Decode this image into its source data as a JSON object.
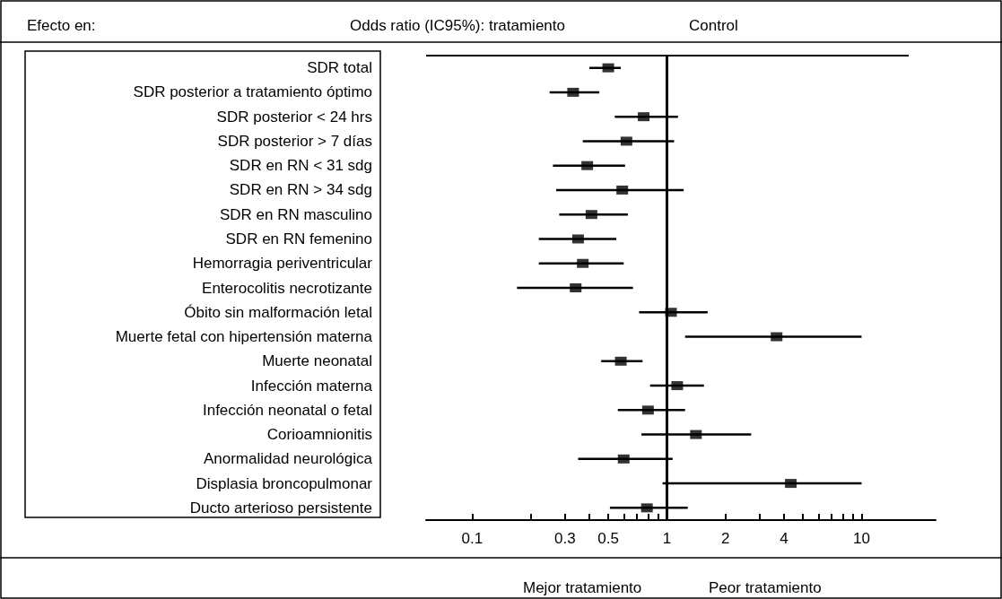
{
  "chart_data": {
    "type": "scatter",
    "orientation": "horizontal",
    "categories": [
      "SDR total",
      "SDR posterior a tratamiento óptimo",
      "SDR posterior < 24 hrs",
      "SDR posterior > 7 días",
      "SDR en RN < 31 sdg",
      "SDR en RN > 34 sdg",
      "SDR en RN masculino",
      "SDR en RN femenino",
      "Hemorragia periventricular",
      "Enterocolitis necrotizante",
      "Óbito sin malformación letal",
      "Muerte fetal con hipertensión materna",
      "Muerte neonatal",
      "Infección materna",
      "Infección neonatal o fetal",
      "Corioamnionitis",
      "Anormalidad neurológica",
      "Displasia broncopulmonar",
      "Ducto arterioso persistente"
    ],
    "series": [
      {
        "color": "#000000",
        "values": [
          0.5,
          0.33,
          0.76,
          0.62,
          0.39,
          0.59,
          0.41,
          0.35,
          0.37,
          0.34,
          1.05,
          3.66,
          0.58,
          1.13,
          0.8,
          1.41,
          0.6,
          4.33,
          0.79
        ],
        "errors": [
          [
            0.4,
            0.58
          ],
          [
            0.25,
            0.45
          ],
          [
            0.54,
            1.14
          ],
          [
            0.37,
            1.09
          ],
          [
            0.26,
            0.61
          ],
          [
            0.27,
            1.22
          ],
          [
            0.28,
            0.63
          ],
          [
            0.22,
            0.55
          ],
          [
            0.22,
            0.6
          ],
          [
            0.17,
            0.67
          ],
          [
            0.72,
            1.62
          ],
          [
            1.24,
            10
          ],
          [
            0.46,
            0.75
          ],
          [
            0.82,
            1.55
          ],
          [
            0.56,
            1.24
          ],
          [
            0.74,
            2.71
          ],
          [
            0.35,
            1.07
          ],
          [
            0.95,
            10
          ],
          [
            0.51,
            1.28
          ]
        ]
      }
    ],
    "marker": "square",
    "log": "x",
    "grid": false,
    "xlim": [
      0.058,
      24
    ],
    "xticks": [
      0.1,
      {
        "value": 0.2,
        "label": null
      },
      0.3,
      {
        "value": 0.4,
        "label": null
      },
      0.5,
      {
        "value": 0.6,
        "label": null
      },
      {
        "value": 0.7,
        "label": null
      },
      {
        "value": 0.8,
        "label": null
      },
      {
        "value": 0.9,
        "label": null
      },
      1,
      2,
      {
        "value": 3,
        "label": null
      },
      4,
      {
        "value": 5,
        "label": null
      },
      {
        "value": 6,
        "label": null
      },
      {
        "value": 7,
        "label": null
      },
      {
        "value": 8,
        "label": null
      },
      {
        "value": 9,
        "label": null
      },
      10
    ],
    "ref_lines": [
      {
        "axis": "x",
        "value": 1,
        "color": "#000000"
      }
    ],
    "annotations": [
      "Efecto en:",
      "Odds ratio (IC95%): tratamiento",
      "Control",
      "Mejor tratamiento",
      "Peor tratamiento"
    ]
  }
}
